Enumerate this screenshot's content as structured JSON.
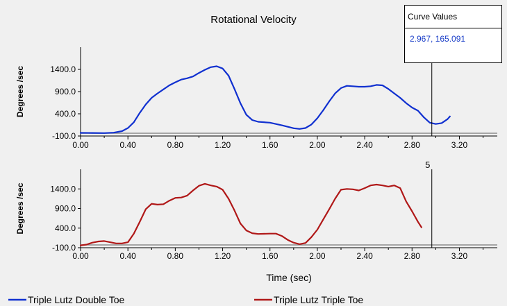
{
  "chart_data": {
    "type": "line",
    "title": "Rotational Velocity",
    "xlabel": "Time (sec)",
    "xlim": [
      0,
      3.52
    ],
    "xticks": [
      "0.00",
      "0.40",
      "0.80",
      "1.20",
      "1.60",
      "2.00",
      "2.40",
      "2.80",
      "3.20"
    ],
    "cursor": {
      "x": 2.967,
      "label": "5"
    },
    "curve_values": {
      "title": "Curve Values",
      "value": "2.967, 165.091"
    },
    "panels": [
      {
        "ylabel": "Degrees /sec",
        "ylim": [
          -100,
          1900
        ],
        "yticks": [
          "1400.0",
          "900.0",
          "400.0",
          "-100.0"
        ],
        "series": [
          {
            "name": "Triple Lutz Double Toe",
            "color": "#1030d0",
            "points": [
              [
                0.0,
                -30
              ],
              [
                0.1,
                -32
              ],
              [
                0.2,
                -35
              ],
              [
                0.28,
                -25
              ],
              [
                0.35,
                10
              ],
              [
                0.4,
                80
              ],
              [
                0.45,
                210
              ],
              [
                0.5,
                420
              ],
              [
                0.55,
                610
              ],
              [
                0.6,
                760
              ],
              [
                0.65,
                860
              ],
              [
                0.7,
                950
              ],
              [
                0.75,
                1040
              ],
              [
                0.8,
                1110
              ],
              [
                0.85,
                1170
              ],
              [
                0.9,
                1200
              ],
              [
                0.95,
                1240
              ],
              [
                1.0,
                1320
              ],
              [
                1.05,
                1390
              ],
              [
                1.1,
                1450
              ],
              [
                1.15,
                1470
              ],
              [
                1.2,
                1420
              ],
              [
                1.25,
                1260
              ],
              [
                1.3,
                960
              ],
              [
                1.35,
                640
              ],
              [
                1.4,
                380
              ],
              [
                1.45,
                260
              ],
              [
                1.5,
                220
              ],
              [
                1.6,
                200
              ],
              [
                1.7,
                140
              ],
              [
                1.8,
                75
              ],
              [
                1.85,
                60
              ],
              [
                1.9,
                80
              ],
              [
                1.95,
                160
              ],
              [
                2.0,
                300
              ],
              [
                2.05,
                480
              ],
              [
                2.1,
                680
              ],
              [
                2.15,
                860
              ],
              [
                2.2,
                980
              ],
              [
                2.25,
                1030
              ],
              [
                2.3,
                1020
              ],
              [
                2.35,
                1010
              ],
              [
                2.4,
                1010
              ],
              [
                2.45,
                1020
              ],
              [
                2.5,
                1050
              ],
              [
                2.55,
                1040
              ],
              [
                2.6,
                960
              ],
              [
                2.65,
                860
              ],
              [
                2.7,
                760
              ],
              [
                2.75,
                640
              ],
              [
                2.8,
                540
              ],
              [
                2.85,
                470
              ],
              [
                2.9,
                320
              ],
              [
                2.95,
                200
              ],
              [
                3.0,
                170
              ],
              [
                3.05,
                190
              ],
              [
                3.1,
                280
              ],
              [
                3.12,
                340
              ]
            ]
          }
        ]
      },
      {
        "ylabel": "Degrees /sec",
        "ylim": [
          -100,
          1900
        ],
        "yticks": [
          "1400.0",
          "900.0",
          "400.0",
          "-100.0"
        ],
        "series": [
          {
            "name": "Triple Lutz Triple Toe",
            "color": "#b01818",
            "points": [
              [
                0.0,
                -40
              ],
              [
                0.05,
                -20
              ],
              [
                0.1,
                30
              ],
              [
                0.15,
                60
              ],
              [
                0.2,
                70
              ],
              [
                0.25,
                40
              ],
              [
                0.3,
                10
              ],
              [
                0.35,
                10
              ],
              [
                0.4,
                40
              ],
              [
                0.45,
                260
              ],
              [
                0.5,
                560
              ],
              [
                0.55,
                880
              ],
              [
                0.6,
                1020
              ],
              [
                0.65,
                1000
              ],
              [
                0.7,
                1010
              ],
              [
                0.75,
                1100
              ],
              [
                0.8,
                1170
              ],
              [
                0.85,
                1180
              ],
              [
                0.9,
                1230
              ],
              [
                0.95,
                1360
              ],
              [
                1.0,
                1480
              ],
              [
                1.05,
                1530
              ],
              [
                1.1,
                1490
              ],
              [
                1.15,
                1460
              ],
              [
                1.2,
                1380
              ],
              [
                1.25,
                1150
              ],
              [
                1.3,
                850
              ],
              [
                1.35,
                520
              ],
              [
                1.4,
                340
              ],
              [
                1.45,
                270
              ],
              [
                1.5,
                250
              ],
              [
                1.6,
                260
              ],
              [
                1.65,
                260
              ],
              [
                1.7,
                200
              ],
              [
                1.75,
                100
              ],
              [
                1.8,
                30
              ],
              [
                1.85,
                -10
              ],
              [
                1.9,
                20
              ],
              [
                1.95,
                170
              ],
              [
                2.0,
                360
              ],
              [
                2.05,
                620
              ],
              [
                2.1,
                880
              ],
              [
                2.15,
                1150
              ],
              [
                2.2,
                1380
              ],
              [
                2.25,
                1400
              ],
              [
                2.3,
                1390
              ],
              [
                2.35,
                1360
              ],
              [
                2.4,
                1420
              ],
              [
                2.45,
                1490
              ],
              [
                2.5,
                1510
              ],
              [
                2.55,
                1490
              ],
              [
                2.6,
                1460
              ],
              [
                2.65,
                1490
              ],
              [
                2.7,
                1420
              ],
              [
                2.75,
                1080
              ],
              [
                2.8,
                830
              ],
              [
                2.85,
                560
              ],
              [
                2.88,
                420
              ]
            ]
          }
        ]
      }
    ]
  }
}
